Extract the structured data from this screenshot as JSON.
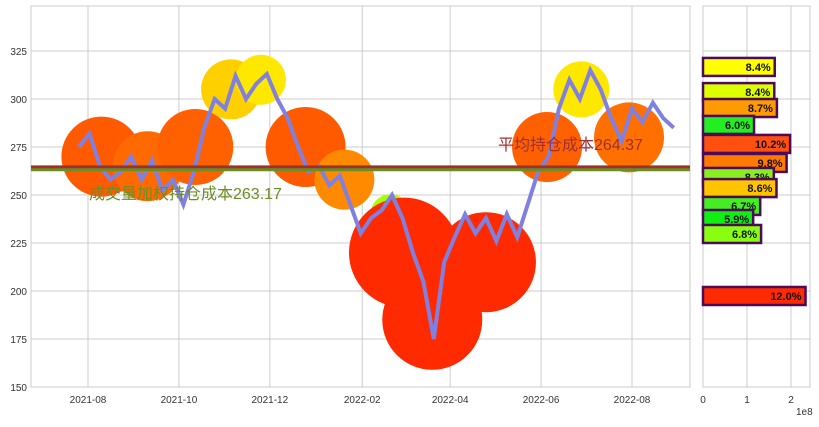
{
  "chart_data": [
    {
      "type": "line",
      "ylim": [
        150,
        348
      ],
      "yticks": [
        150,
        175,
        200,
        225,
        250,
        275,
        300,
        325
      ],
      "xticks": [
        "2021-08",
        "2021-10",
        "2021-12",
        "2022-02",
        "2022-04",
        "2022-06",
        "2022-08"
      ],
      "grid": true,
      "line_color": "#8080e0",
      "x": [
        "2021-07-26",
        "2021-08-02",
        "2021-08-09",
        "2021-08-16",
        "2021-08-23",
        "2021-08-30",
        "2021-09-06",
        "2021-09-13",
        "2021-09-20",
        "2021-09-27",
        "2021-10-04",
        "2021-10-11",
        "2021-10-18",
        "2021-10-25",
        "2021-11-01",
        "2021-11-08",
        "2021-11-15",
        "2021-11-22",
        "2021-11-29",
        "2021-12-06",
        "2021-12-13",
        "2021-12-20",
        "2021-12-27",
        "2022-01-03",
        "2022-01-10",
        "2022-01-17",
        "2022-01-24",
        "2022-01-31",
        "2022-02-07",
        "2022-02-14",
        "2022-02-21",
        "2022-02-28",
        "2022-03-07",
        "2022-03-14",
        "2022-03-21",
        "2022-03-28",
        "2022-04-04",
        "2022-04-11",
        "2022-04-18",
        "2022-04-25",
        "2022-05-02",
        "2022-05-09",
        "2022-05-16",
        "2022-05-23",
        "2022-05-30",
        "2022-06-06",
        "2022-06-13",
        "2022-06-20",
        "2022-06-27",
        "2022-07-04",
        "2022-07-11",
        "2022-07-18",
        "2022-07-25",
        "2022-08-01",
        "2022-08-08",
        "2022-08-15",
        "2022-08-22",
        "2022-08-29"
      ],
      "y": [
        275,
        282,
        265,
        258,
        262,
        270,
        258,
        268,
        252,
        258,
        245,
        262,
        285,
        300,
        295,
        312,
        300,
        308,
        313,
        300,
        290,
        275,
        262,
        265,
        255,
        260,
        245,
        230,
        238,
        242,
        250,
        238,
        220,
        205,
        175,
        215,
        228,
        240,
        230,
        238,
        226,
        240,
        228,
        245,
        262,
        270,
        295,
        310,
        300,
        315,
        305,
        290,
        278,
        295,
        288,
        298,
        290,
        285
      ],
      "hlines": [
        {
          "value": 264.37,
          "label": "平均持仓成本264.37",
          "color": "#a03030"
        },
        {
          "value": 263.17,
          "label": "成交量加权持仓成本263.17",
          "color": "#6b8e23"
        }
      ],
      "blobs": [
        {
          "date": "2021-08-10",
          "price": 270,
          "r": 40,
          "color": "#ff5a00"
        },
        {
          "date": "2021-09-10",
          "price": 265,
          "r": 35,
          "color": "#ff6a00"
        },
        {
          "date": "2021-10-12",
          "price": 275,
          "r": 38,
          "color": "#ff6000"
        },
        {
          "date": "2021-11-05",
          "price": 305,
          "r": 30,
          "color": "#ffd000"
        },
        {
          "date": "2021-11-25",
          "price": 310,
          "r": 25,
          "color": "#ffe800"
        },
        {
          "date": "2021-12-25",
          "price": 275,
          "r": 40,
          "color": "#ff5a00"
        },
        {
          "date": "2022-01-20",
          "price": 258,
          "r": 30,
          "color": "#ff8a00"
        },
        {
          "date": "2022-02-20",
          "price": 240,
          "r": 20,
          "color": "#aaff00"
        },
        {
          "date": "2022-03-01",
          "price": 220,
          "r": 55,
          "color": "#ff2a00"
        },
        {
          "date": "2022-03-20",
          "price": 185,
          "r": 50,
          "color": "#ff2a00"
        },
        {
          "date": "2022-04-25",
          "price": 215,
          "r": 50,
          "color": "#ff2a00"
        },
        {
          "date": "2022-06-05",
          "price": 275,
          "r": 35,
          "color": "#ff6000"
        },
        {
          "date": "2022-06-28",
          "price": 305,
          "r": 28,
          "color": "#ffe800"
        },
        {
          "date": "2022-07-30",
          "price": 280,
          "r": 35,
          "color": "#ff7000"
        }
      ]
    },
    {
      "type": "bar",
      "orientation": "horizontal",
      "xlabel_offset": "1e8",
      "xticks": [
        0,
        1,
        2
      ],
      "xlim": [
        0,
        2.45
      ],
      "bars": [
        {
          "price": 316.7,
          "value": 1.63,
          "label": "8.4%",
          "color": "#ffff00"
        },
        {
          "price": 303.6,
          "value": 1.62,
          "label": "8.4%",
          "color": "#ddff00"
        },
        {
          "price": 295.3,
          "value": 1.68,
          "label": "8.7%",
          "color": "#ff9a00"
        },
        {
          "price": 286.5,
          "value": 1.16,
          "label": "6.0%",
          "color": "#22ee22"
        },
        {
          "price": 276.6,
          "value": 1.98,
          "label": "10.2%",
          "color": "#ff5010"
        },
        {
          "price": 266.7,
          "value": 1.9,
          "label": "9.8%",
          "color": "#ff7a00"
        },
        {
          "price": 259.4,
          "value": 1.61,
          "label": "8.3%",
          "color": "#88ee22"
        },
        {
          "price": 253.6,
          "value": 1.67,
          "label": "8.6%",
          "color": "#ffc400"
        },
        {
          "price": 244.3,
          "value": 1.3,
          "label": "6.7%",
          "color": "#44ee22"
        },
        {
          "price": 237.5,
          "value": 1.14,
          "label": "5.9%",
          "color": "#11ee11"
        },
        {
          "price": 229.7,
          "value": 1.32,
          "label": "6.8%",
          "color": "#88ff11"
        },
        {
          "price": 197.4,
          "value": 2.33,
          "label": "12.0%",
          "color": "#ff2a00"
        }
      ],
      "edge_color": "#4b0a5a"
    }
  ]
}
